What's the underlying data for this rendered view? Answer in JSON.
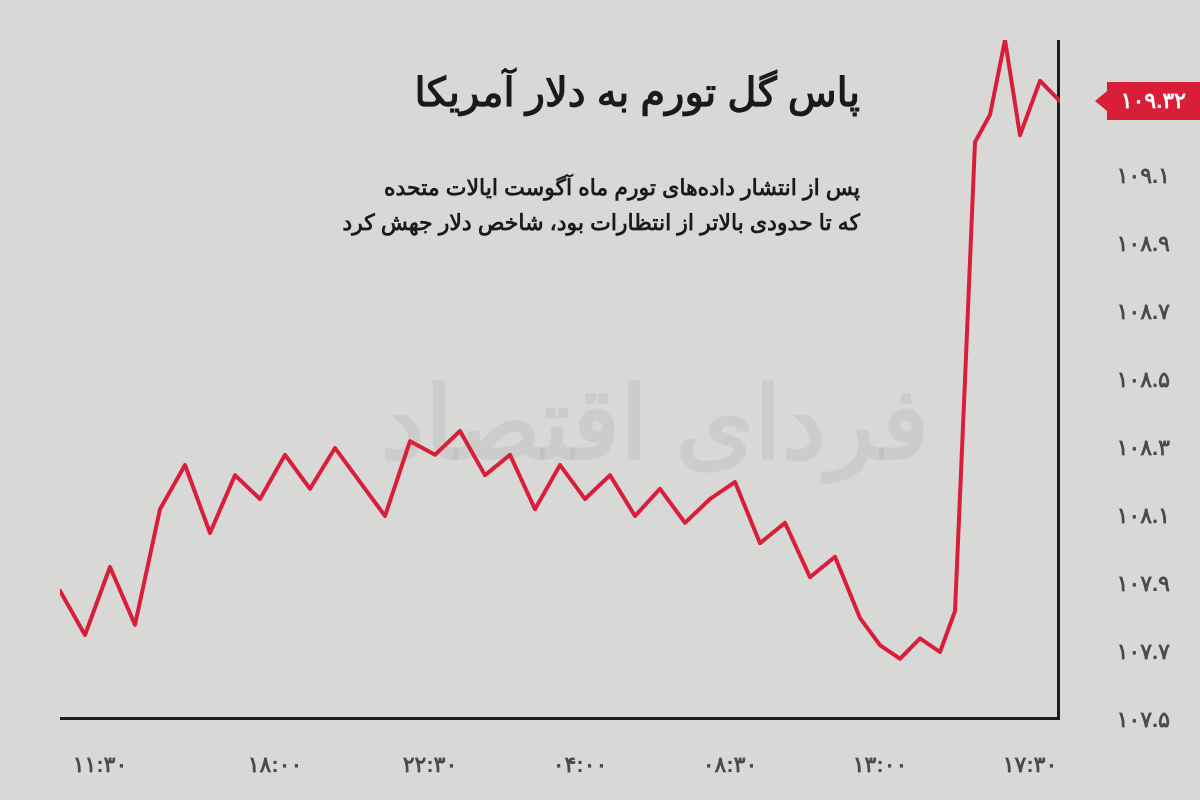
{
  "chart": {
    "type": "line",
    "title": "پاس گل تورم به دلار آمریکا",
    "subtitle_line1": "پس از انتشار داده‌های تورم ماه آگوست ایالات متحده",
    "subtitle_line2": "که تا حدودی بالاتر از انتظارات بود، شاخص دلار جهش کرد",
    "watermark": "فردای اقتصاد",
    "current_value": "۱۰۹.۳۲",
    "current_value_numeric": 109.32,
    "background_color": "#d8d9d7",
    "line_color": "#d91e3a",
    "line_width": 4,
    "axis_color": "#1a1a1a",
    "text_color": "#1a1a1a",
    "tick_color": "#4a4a4a",
    "badge_bg": "#d91e3a",
    "badge_text_color": "#ffffff",
    "title_fontsize": 40,
    "subtitle_fontsize": 22,
    "tick_fontsize": 22,
    "ylim": [
      107.5,
      109.5
    ],
    "y_ticks": [
      {
        "value": 107.5,
        "label": "۱۰۷.۵"
      },
      {
        "value": 107.7,
        "label": "۱۰۷.۷"
      },
      {
        "value": 107.9,
        "label": "۱۰۷.۹"
      },
      {
        "value": 108.1,
        "label": "۱۰۸.۱"
      },
      {
        "value": 108.3,
        "label": "۱۰۸.۳"
      },
      {
        "value": 108.5,
        "label": "۱۰۸.۵"
      },
      {
        "value": 108.7,
        "label": "۱۰۸.۷"
      },
      {
        "value": 108.9,
        "label": "۱۰۸.۹"
      },
      {
        "value": 109.1,
        "label": "۱۰۹.۱"
      }
    ],
    "x_ticks": [
      {
        "pos": 0.04,
        "label": "۱۱:۳۰"
      },
      {
        "pos": 0.215,
        "label": "۱۸:۰۰"
      },
      {
        "pos": 0.37,
        "label": "۲۲:۳۰"
      },
      {
        "pos": 0.52,
        "label": "۰۴:۰۰"
      },
      {
        "pos": 0.67,
        "label": "۰۸:۳۰"
      },
      {
        "pos": 0.82,
        "label": "۱۳:۰۰"
      },
      {
        "pos": 0.97,
        "label": "۱۷:۳۰"
      }
    ],
    "series": [
      {
        "x": 0.0,
        "y": 107.88
      },
      {
        "x": 0.025,
        "y": 107.75
      },
      {
        "x": 0.05,
        "y": 107.95
      },
      {
        "x": 0.075,
        "y": 107.78
      },
      {
        "x": 0.1,
        "y": 108.12
      },
      {
        "x": 0.125,
        "y": 108.25
      },
      {
        "x": 0.15,
        "y": 108.05
      },
      {
        "x": 0.175,
        "y": 108.22
      },
      {
        "x": 0.2,
        "y": 108.15
      },
      {
        "x": 0.225,
        "y": 108.28
      },
      {
        "x": 0.25,
        "y": 108.18
      },
      {
        "x": 0.275,
        "y": 108.3
      },
      {
        "x": 0.3,
        "y": 108.2
      },
      {
        "x": 0.325,
        "y": 108.1
      },
      {
        "x": 0.35,
        "y": 108.32
      },
      {
        "x": 0.375,
        "y": 108.28
      },
      {
        "x": 0.4,
        "y": 108.35
      },
      {
        "x": 0.425,
        "y": 108.22
      },
      {
        "x": 0.45,
        "y": 108.28
      },
      {
        "x": 0.475,
        "y": 108.12
      },
      {
        "x": 0.5,
        "y": 108.25
      },
      {
        "x": 0.525,
        "y": 108.15
      },
      {
        "x": 0.55,
        "y": 108.22
      },
      {
        "x": 0.575,
        "y": 108.1
      },
      {
        "x": 0.6,
        "y": 108.18
      },
      {
        "x": 0.625,
        "y": 108.08
      },
      {
        "x": 0.65,
        "y": 108.15
      },
      {
        "x": 0.675,
        "y": 108.2
      },
      {
        "x": 0.7,
        "y": 108.02
      },
      {
        "x": 0.725,
        "y": 108.08
      },
      {
        "x": 0.75,
        "y": 107.92
      },
      {
        "x": 0.775,
        "y": 107.98
      },
      {
        "x": 0.8,
        "y": 107.8
      },
      {
        "x": 0.82,
        "y": 107.72
      },
      {
        "x": 0.84,
        "y": 107.68
      },
      {
        "x": 0.86,
        "y": 107.74
      },
      {
        "x": 0.88,
        "y": 107.7
      },
      {
        "x": 0.895,
        "y": 107.82
      },
      {
        "x": 0.905,
        "y": 108.5
      },
      {
        "x": 0.915,
        "y": 109.2
      },
      {
        "x": 0.93,
        "y": 109.28
      },
      {
        "x": 0.945,
        "y": 109.5
      },
      {
        "x": 0.96,
        "y": 109.22
      },
      {
        "x": 0.98,
        "y": 109.38
      },
      {
        "x": 1.0,
        "y": 109.32
      }
    ]
  }
}
